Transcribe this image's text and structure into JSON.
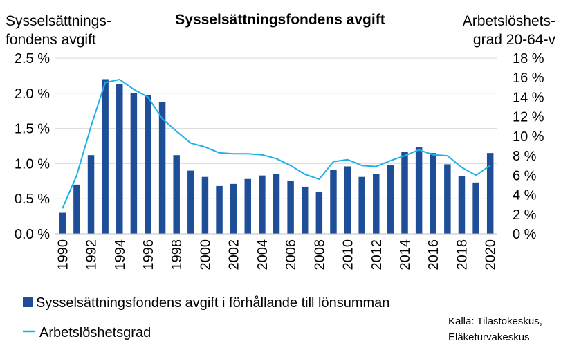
{
  "chart_data": {
    "type": "bar",
    "title": "Sysselsättningsfondens avgift",
    "ylabel_left": [
      "Sysselsättnings-",
      "fondens avgift"
    ],
    "ylabel_right": [
      "Arbetslöshets-",
      "grad 20-64-v"
    ],
    "x": [
      1990,
      1991,
      1992,
      1993,
      1994,
      1995,
      1996,
      1997,
      1998,
      1999,
      2000,
      2001,
      2002,
      2003,
      2004,
      2005,
      2006,
      2007,
      2008,
      2009,
      2010,
      2011,
      2012,
      2013,
      2014,
      2015,
      2016,
      2017,
      2018,
      2019,
      2020
    ],
    "x_tick_labels": [
      "1990",
      "1992",
      "1994",
      "1996",
      "1998",
      "2000",
      "2002",
      "2004",
      "2006",
      "2008",
      "2010",
      "2012",
      "2014",
      "2016",
      "2018",
      "2020"
    ],
    "y_left_ticks": [
      "0.0 %",
      "0.5 %",
      "1.0 %",
      "1.5 %",
      "2.0 %",
      "2.5 %"
    ],
    "y_right_ticks": [
      "0 %",
      "2 %",
      "4 %",
      "6 %",
      "8 %",
      "10 %",
      "12 %",
      "14 %",
      "16 %",
      "18 %"
    ],
    "ylim_left": [
      0,
      2.5
    ],
    "ylim_right": [
      0,
      18
    ],
    "grid": "horizontal",
    "legend_position": "bottom",
    "series": [
      {
        "name": "Sysselsättningsfondens avgift i förhållande till lönsumman",
        "type": "bar",
        "axis": "left",
        "color": "#1f4e99",
        "values": [
          0.3,
          0.7,
          1.12,
          2.2,
          2.13,
          2.0,
          1.97,
          1.88,
          1.12,
          0.9,
          0.81,
          0.68,
          0.71,
          0.78,
          0.83,
          0.85,
          0.75,
          0.67,
          0.6,
          0.91,
          0.96,
          0.81,
          0.85,
          0.98,
          1.17,
          1.23,
          1.15,
          0.99,
          0.82,
          0.73,
          1.15
        ]
      },
      {
        "name": "Arbetslöshetsgrad",
        "type": "line",
        "axis": "right",
        "color": "#1fb0e8",
        "values": [
          2.6,
          6.0,
          11.0,
          15.5,
          15.8,
          14.8,
          14.0,
          11.8,
          10.5,
          9.3,
          8.9,
          8.3,
          8.2,
          8.2,
          8.1,
          7.7,
          7.0,
          6.1,
          5.6,
          7.4,
          7.6,
          7.0,
          6.9,
          7.5,
          8.0,
          8.6,
          8.1,
          8.0,
          6.8,
          6.0,
          7.0
        ]
      }
    ],
    "source": [
      "Källa: Tilastokeskus,",
      "Eläketurvakeskus"
    ]
  }
}
